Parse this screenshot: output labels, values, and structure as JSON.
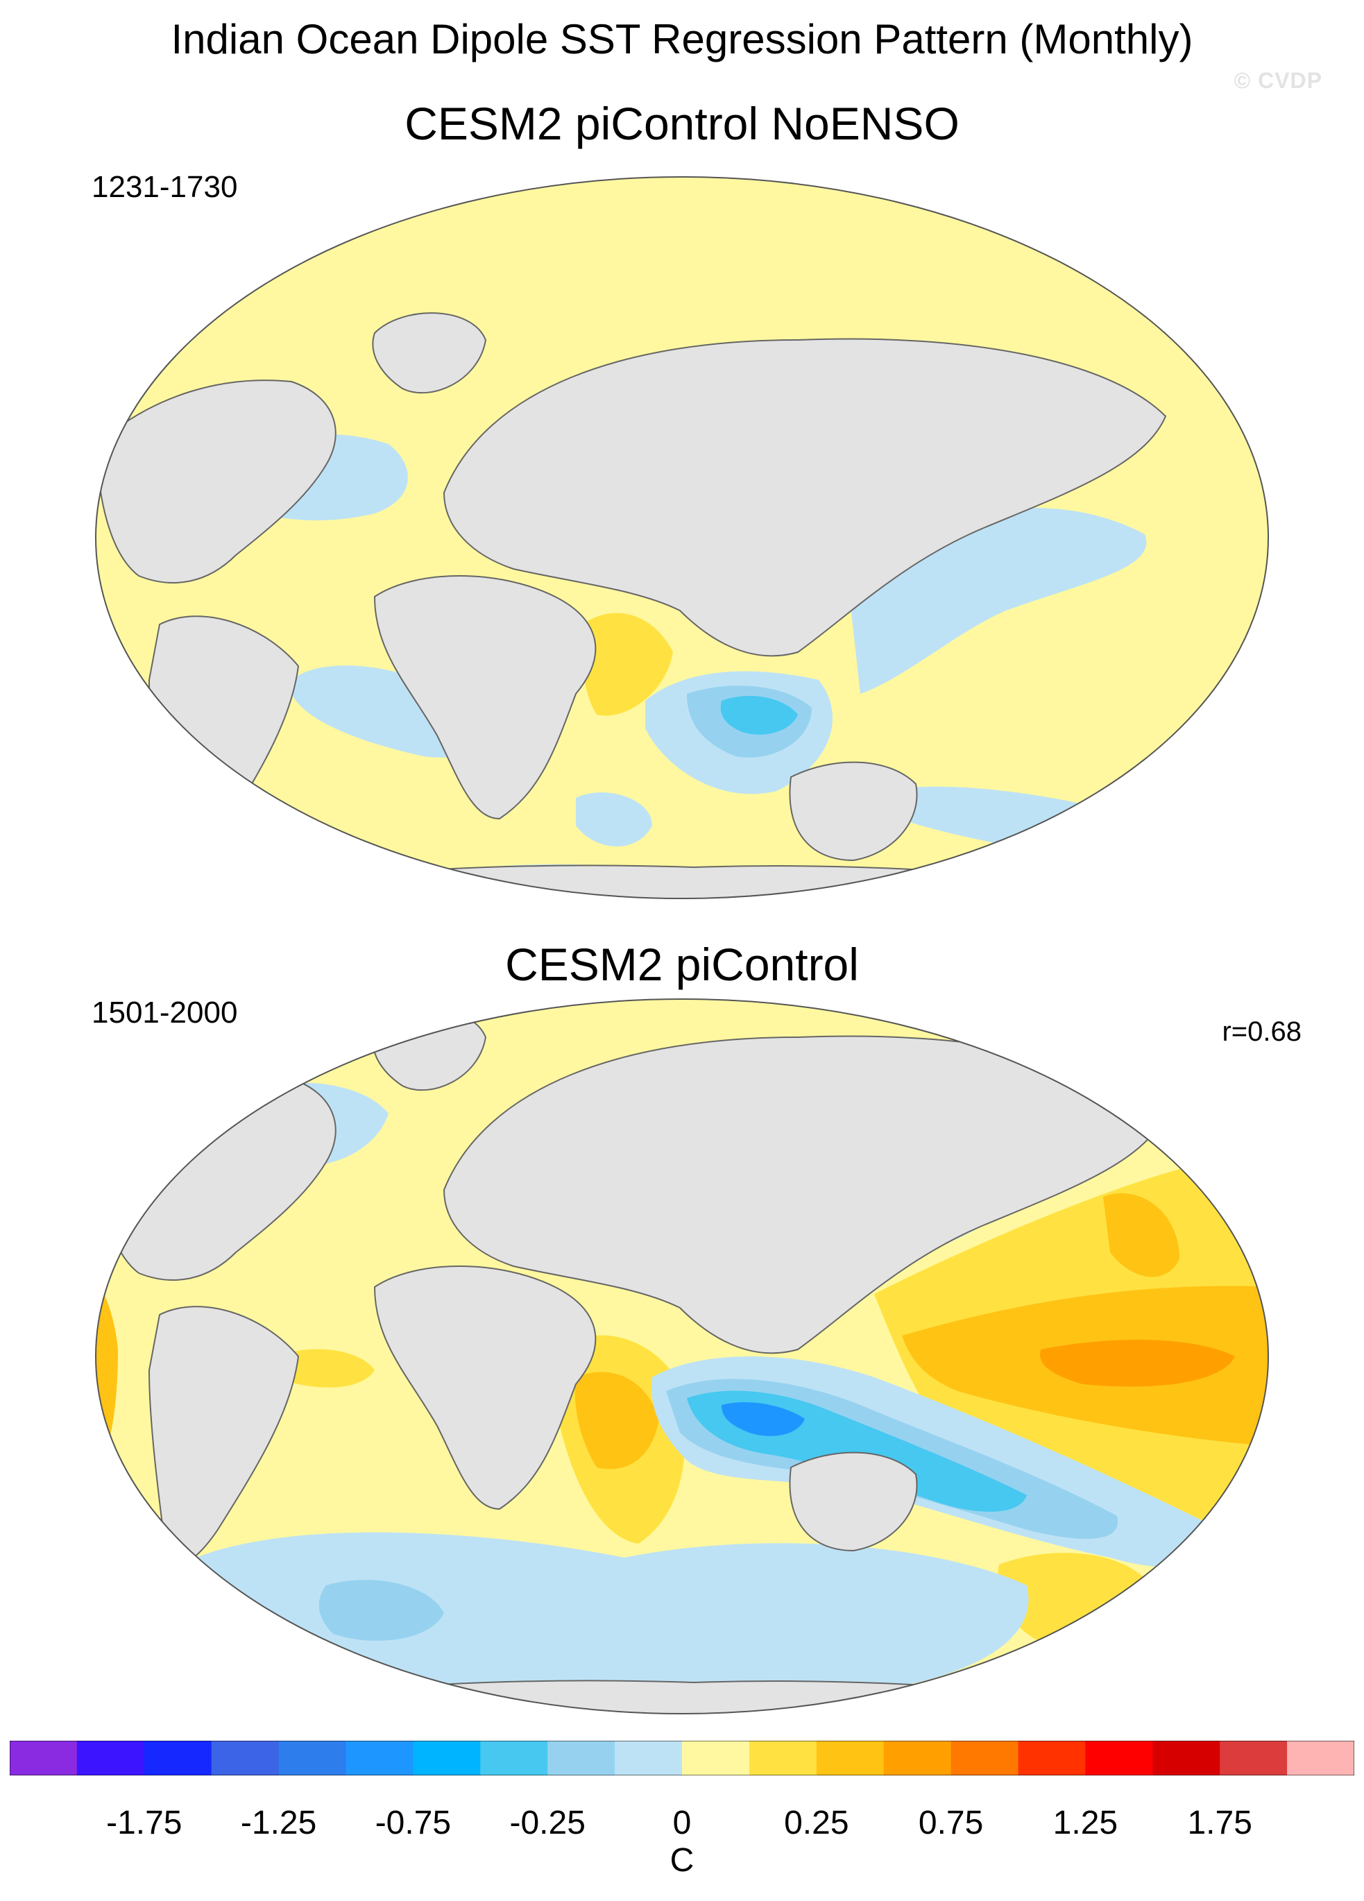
{
  "title": "Indian Ocean Dipole SST Regression Pattern (Monthly)",
  "watermark": "© CVDP",
  "panels": [
    {
      "title": "CESM2 piControl NoENSO",
      "years": "1231-1730",
      "corr": ""
    },
    {
      "title": "CESM2 piControl",
      "years": "1501-2000",
      "corr": "r=0.68"
    }
  ],
  "colors": {
    "land": "#e3e3e3",
    "coast": "#666666",
    "ocean_default": "#fff8a0",
    "levels": [
      "#8a2be2",
      "#3c14ff",
      "#1428ff",
      "#3c64e6",
      "#2d7ded",
      "#1e96ff",
      "#00b4ff",
      "#46c8f0",
      "#96d2f0",
      "#bee2f5",
      "#fff8a0",
      "#ffe241",
      "#ffc314",
      "#ffa000",
      "#ff7800",
      "#ff3200",
      "#ff0000",
      "#d70000",
      "#dc3c3c",
      "#ffb4b4"
    ]
  },
  "colorbar": {
    "tick_labels": [
      "-1.75",
      "-1.25",
      "-0.75",
      "-0.25",
      "0",
      "0.25",
      "0.75",
      "1.25",
      "1.75"
    ],
    "unit": "C"
  }
}
